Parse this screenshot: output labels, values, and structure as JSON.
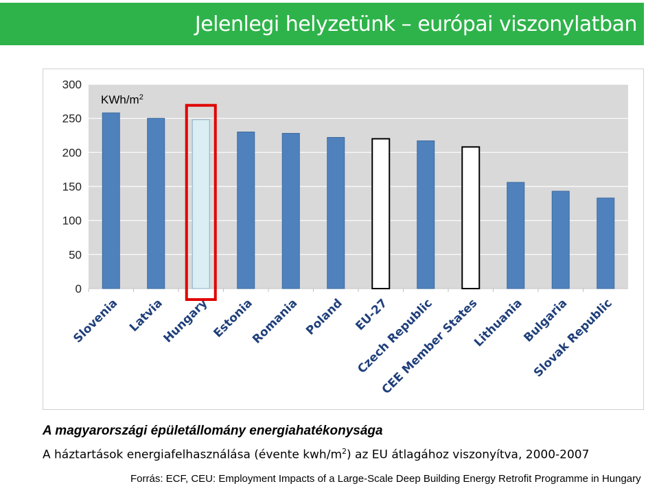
{
  "header": {
    "title": "Jelenlegi helyzetünk – európai viszonylatban"
  },
  "colors": {
    "header_bg": "#2eb34a",
    "plot_bg": "#d9d9d9",
    "bar_blue": "#4f81bd",
    "bar_white": "#ffffff",
    "bar_highlight": "#daeef3",
    "highlight_border": "#e00000"
  },
  "chart_data": {
    "type": "bar",
    "unit_label": "KWh/m",
    "unit_sup": "2",
    "categories": [
      "Slovenia",
      "Latvia",
      "Hungary",
      "Estonia",
      "Romania",
      "Poland",
      "EU-27",
      "Czech Republic",
      "CEE Member States",
      "Lithuania",
      "Bulgaria",
      "Slovak Republic"
    ],
    "values": [
      258,
      250,
      248,
      230,
      228,
      222,
      220,
      217,
      208,
      156,
      143,
      133
    ],
    "bar_styles": [
      "blue",
      "blue",
      "highlight",
      "blue",
      "blue",
      "blue",
      "white",
      "blue",
      "white",
      "blue",
      "blue",
      "blue"
    ],
    "highlighted_category": "Hungary",
    "ylim": [
      0,
      300
    ],
    "yticks": [
      0,
      50,
      100,
      150,
      200,
      250,
      300
    ],
    "grid": true
  },
  "caption": {
    "title": "A magyarországi épületállomány energiahatékonysága",
    "desc_before": "A háztartások energiafelhasználása (évente kwh/m",
    "desc_sup": "2",
    "desc_after": ") az EU átlagához viszonyítva, 2000-2007"
  },
  "source": "Forrás: ECF, CEU: Employment Impacts of a Large-Scale Deep Building Energy Retrofit Programme in Hungary"
}
